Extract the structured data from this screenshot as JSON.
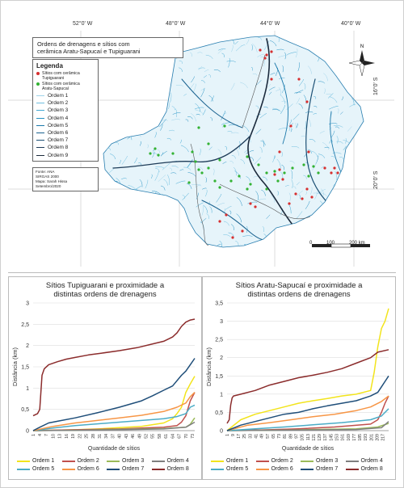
{
  "map": {
    "title_line1": "Ordens de drenagens e sítios com",
    "title_line2": "cerâmica Aratu-Sapucaí e Tupiguarani",
    "coords_top": [
      "52°0' W",
      "48°0' W",
      "44°0' W",
      "40°0' W"
    ],
    "coords_right": [
      "16°0' S",
      "20°0' S"
    ],
    "legend": {
      "title": "Legenda",
      "sites": [
        {
          "label_line1": "Sítios com cerâmica",
          "label_line2": "Tupiguarani",
          "color": "#d62f2f"
        },
        {
          "label_line1": "Sítios com cerâmica",
          "label_line2": "Aratu-Sapucaí",
          "color": "#33b233"
        }
      ],
      "orders": [
        {
          "label": "Ordem 1",
          "color": "#9fd3ea"
        },
        {
          "label": "Ordem 2",
          "color": "#6fbfe0"
        },
        {
          "label": "Ordem 3",
          "color": "#43a8d3"
        },
        {
          "label": "Ordem 4",
          "color": "#2590c2"
        },
        {
          "label": "Ordem 5",
          "color": "#1b78aa"
        },
        {
          "label": "Ordem 6",
          "color": "#1a6390"
        },
        {
          "label": "Ordem 7",
          "color": "#1b4f74"
        },
        {
          "label": "Ordem 8",
          "color": "#1e3c58"
        },
        {
          "label": "Ordem 9",
          "color": "#1b2a3c"
        }
      ]
    },
    "credits": [
      "Fonte: ANA",
      "SIRGAS 2000",
      "Mapa: Sarah Hissa",
      "Setembro/2020"
    ],
    "scale": {
      "labels": [
        "0",
        "100",
        "200 km"
      ]
    },
    "north_label": "N"
  },
  "chart_data": [
    {
      "type": "line",
      "title_line1": "Sítios Tupiguarani e proximidade a",
      "title_line2": "distintas ordens de drenagens",
      "xlabel": "Quantidade de sítios",
      "ylabel": "Distância (km)",
      "ylim": [
        0,
        3
      ],
      "yticks": [
        0,
        0.5,
        1,
        1.5,
        2,
        2.5,
        3
      ],
      "ytick_labels": [
        "0",
        "0,5",
        "1",
        "1,5",
        "2",
        "2,5",
        "3"
      ],
      "xlim": [
        1,
        74
      ],
      "xtick_labels": [
        "1",
        "4",
        "7",
        "10",
        "13",
        "16",
        "19",
        "22",
        "25",
        "28",
        "31",
        "34",
        "37",
        "40",
        "43",
        "46",
        "49",
        "52",
        "55",
        "58",
        "61",
        "64",
        "67",
        "70",
        "73"
      ],
      "series": [
        {
          "name": "Ordem 1",
          "color": "#f2e41c",
          "x": [
            1,
            10,
            20,
            30,
            40,
            50,
            60,
            64,
            66,
            68,
            70,
            72,
            74
          ],
          "y": [
            0.0,
            0.01,
            0.02,
            0.04,
            0.07,
            0.1,
            0.18,
            0.28,
            0.4,
            0.55,
            0.9,
            1.1,
            1.28
          ]
        },
        {
          "name": "Ordem 2",
          "color": "#c0504d",
          "x": [
            1,
            20,
            40,
            60,
            66,
            68,
            70,
            72,
            74
          ],
          "y": [
            0.0,
            0.02,
            0.04,
            0.08,
            0.12,
            0.2,
            0.35,
            0.7,
            0.9
          ]
        },
        {
          "name": "Ordem 3",
          "color": "#9bbb59",
          "x": [
            1,
            20,
            40,
            60,
            70,
            72,
            74
          ],
          "y": [
            0.0,
            0.01,
            0.03,
            0.05,
            0.08,
            0.15,
            0.3
          ]
        },
        {
          "name": "Ordem 4",
          "color": "#7f7f7f",
          "x": [
            1,
            20,
            40,
            60,
            70,
            74
          ],
          "y": [
            0.0,
            0.01,
            0.02,
            0.04,
            0.08,
            0.2
          ]
        },
        {
          "name": "Ordem 5",
          "color": "#4bacc6",
          "x": [
            1,
            10,
            20,
            30,
            40,
            50,
            60,
            66,
            70,
            72,
            74
          ],
          "y": [
            0.0,
            0.06,
            0.12,
            0.16,
            0.2,
            0.24,
            0.28,
            0.33,
            0.4,
            0.55,
            0.6
          ]
        },
        {
          "name": "Ordem 6",
          "color": "#f79646",
          "x": [
            1,
            10,
            20,
            30,
            40,
            50,
            60,
            66,
            70,
            72,
            74
          ],
          "y": [
            0.0,
            0.1,
            0.18,
            0.24,
            0.3,
            0.36,
            0.45,
            0.55,
            0.65,
            0.8,
            0.9
          ]
        },
        {
          "name": "Ordem 7",
          "color": "#1f4e79",
          "x": [
            1,
            4,
            8,
            12,
            20,
            30,
            40,
            50,
            55,
            60,
            64,
            68,
            70,
            72,
            74
          ],
          "y": [
            0.0,
            0.08,
            0.18,
            0.22,
            0.3,
            0.42,
            0.55,
            0.7,
            0.82,
            0.95,
            1.05,
            1.3,
            1.4,
            1.55,
            1.7
          ]
        },
        {
          "name": "Ordem 8",
          "color": "#8b2c2c",
          "x": [
            1,
            3,
            4,
            5,
            6,
            8,
            12,
            16,
            20,
            26,
            32,
            40,
            48,
            56,
            60,
            64,
            66,
            68,
            70,
            72,
            74
          ],
          "y": [
            0.35,
            0.4,
            0.5,
            1.3,
            1.45,
            1.55,
            1.62,
            1.68,
            1.72,
            1.78,
            1.82,
            1.88,
            1.95,
            2.05,
            2.1,
            2.2,
            2.3,
            2.45,
            2.55,
            2.6,
            2.62
          ]
        }
      ]
    },
    {
      "type": "line",
      "title_line1": "Sítios Aratu-Sapucaí e proximidade a",
      "title_line2": "distintas ordens de drenagens",
      "xlabel": "Quantidade de sítios",
      "ylabel": "Distância (km)",
      "ylim": [
        0,
        3.5
      ],
      "yticks": [
        0,
        0.5,
        1,
        1.5,
        2,
        2.5,
        3,
        3.5
      ],
      "ytick_labels": [
        "0",
        "0,5",
        "1",
        "1,5",
        "2",
        "2,5",
        "3",
        "3,5"
      ],
      "xlim": [
        1,
        225
      ],
      "xtick_labels": [
        "1",
        "9",
        "17",
        "25",
        "33",
        "41",
        "49",
        "57",
        "65",
        "73",
        "81",
        "89",
        "97",
        "105",
        "113",
        "121",
        "129",
        "137",
        "145",
        "153",
        "161",
        "169",
        "177",
        "185",
        "193",
        "201",
        "209",
        "217"
      ],
      "series": [
        {
          "name": "Ordem 1",
          "color": "#f2e41c",
          "x": [
            1,
            20,
            40,
            60,
            80,
            100,
            120,
            140,
            160,
            180,
            200,
            205,
            210,
            215,
            220,
            225
          ],
          "y": [
            0.0,
            0.3,
            0.45,
            0.55,
            0.65,
            0.75,
            0.82,
            0.88,
            0.95,
            1.0,
            1.1,
            1.6,
            2.3,
            2.8,
            3.0,
            3.35
          ]
        },
        {
          "name": "Ordem 2",
          "color": "#c0504d",
          "x": [
            1,
            50,
            100,
            150,
            200,
            210,
            215,
            220,
            225
          ],
          "y": [
            0.0,
            0.02,
            0.05,
            0.1,
            0.18,
            0.3,
            0.5,
            0.75,
            0.95
          ]
        },
        {
          "name": "Ordem 3",
          "color": "#9bbb59",
          "x": [
            1,
            60,
            120,
            180,
            210,
            225
          ],
          "y": [
            0.0,
            0.01,
            0.03,
            0.05,
            0.1,
            0.2
          ]
        },
        {
          "name": "Ordem 4",
          "color": "#7f7f7f",
          "x": [
            1,
            60,
            120,
            180,
            215,
            225
          ],
          "y": [
            0.0,
            0.01,
            0.02,
            0.03,
            0.08,
            0.25
          ]
        },
        {
          "name": "Ordem 5",
          "color": "#4bacc6",
          "x": [
            1,
            40,
            80,
            120,
            160,
            200,
            215,
            225
          ],
          "y": [
            0.0,
            0.05,
            0.1,
            0.16,
            0.22,
            0.3,
            0.4,
            0.6
          ]
        },
        {
          "name": "Ordem 6",
          "color": "#f79646",
          "x": [
            1,
            30,
            60,
            90,
            120,
            150,
            180,
            200,
            215,
            225
          ],
          "y": [
            0.0,
            0.15,
            0.22,
            0.3,
            0.38,
            0.45,
            0.55,
            0.65,
            0.8,
            0.95
          ]
        },
        {
          "name": "Ordem 7",
          "color": "#1f4e79",
          "x": [
            1,
            20,
            40,
            60,
            80,
            100,
            120,
            140,
            160,
            180,
            200,
            210,
            215,
            220,
            225
          ],
          "y": [
            0.0,
            0.15,
            0.25,
            0.35,
            0.45,
            0.5,
            0.6,
            0.68,
            0.75,
            0.82,
            0.95,
            1.05,
            1.2,
            1.35,
            1.5
          ]
        },
        {
          "name": "Ordem 8",
          "color": "#8b2c2c",
          "x": [
            1,
            4,
            6,
            8,
            10,
            20,
            40,
            60,
            80,
            100,
            120,
            140,
            160,
            180,
            200,
            210,
            225
          ],
          "y": [
            0.2,
            0.3,
            0.7,
            0.9,
            0.95,
            1.0,
            1.1,
            1.25,
            1.35,
            1.45,
            1.52,
            1.6,
            1.7,
            1.85,
            2.0,
            2.15,
            2.22
          ]
        }
      ]
    }
  ]
}
